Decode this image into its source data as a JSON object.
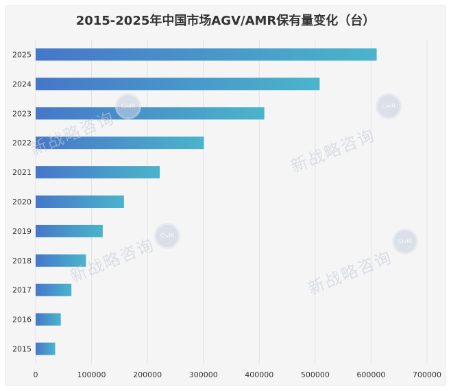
{
  "chart_data": {
    "type": "bar",
    "orientation": "horizontal",
    "title": "2015-2025年中国市场AGV/AMR保有量变化（台）",
    "categories": [
      "2015",
      "2016",
      "2017",
      "2018",
      "2019",
      "2020",
      "2021",
      "2022",
      "2023",
      "2024",
      "2025"
    ],
    "values": [
      35000,
      45000,
      64000,
      90000,
      120000,
      158000,
      222000,
      301000,
      409000,
      508000,
      610000
    ],
    "xlim": [
      0,
      700000
    ],
    "xticks": [
      0,
      100000,
      200000,
      300000,
      400000,
      500000,
      600000,
      700000
    ],
    "grid": "vertical",
    "legend": "none",
    "colors": {
      "bar_start": "#4677c9",
      "bar_end": "#4bb4cb",
      "grid": "#e2e2e2",
      "text": "#333333"
    }
  },
  "watermark": {
    "text": "新战略咨询",
    "seal": "CiviR"
  }
}
